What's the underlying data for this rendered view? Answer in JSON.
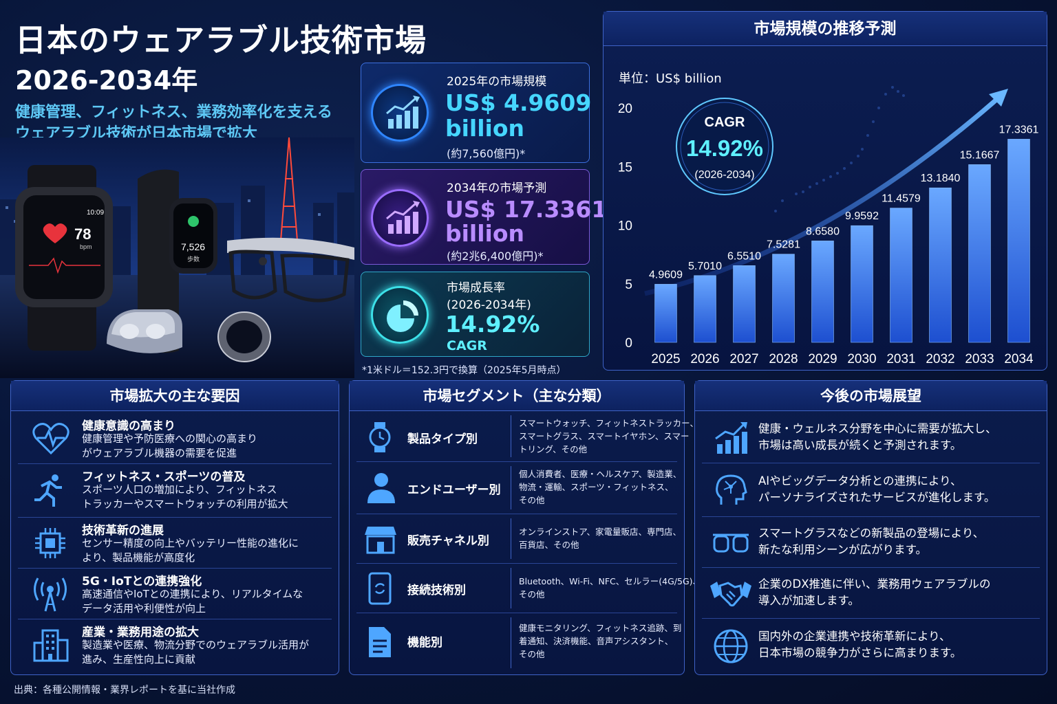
{
  "header": {
    "title_line1": "日本のウェアラブル技術市場",
    "title_line2": "2026-2034年",
    "subtitle_line1": "健康管理、フィットネス、業務効率化を支える",
    "subtitle_line2": "ウェアラブル技術が日本市場で拡大"
  },
  "hero": {
    "watch_time": "10:09",
    "heart_rate": "78",
    "heart_unit": "bpm",
    "steps": "7,526",
    "steps_unit": "歩数"
  },
  "kpis": [
    {
      "label": "2025年の市場規模",
      "value_line1": "US$ 4.9609",
      "value_line2": "billion",
      "note": "(約7,560億円)*",
      "icon": "bar-chart-up-icon"
    },
    {
      "label": "2034年の市場予測",
      "value_line1": "US$ 17.3361",
      "value_line2": "billion",
      "note": "(約2兆6,400億円)*",
      "icon": "bar-chart-up-icon"
    },
    {
      "label_line1": "市場成長率",
      "label_line2": "(2026-2034年)",
      "value_line1": "14.92%",
      "value_line2": "CAGR",
      "icon": "pie-chart-icon"
    }
  ],
  "footnote": "*1米ドル＝152.3円で換算（2025年5月時点）",
  "chart_data": {
    "type": "bar",
    "title": "市場規模の推移予測",
    "unit_label": "単位：US$ billion",
    "categories": [
      "2025",
      "2026",
      "2027",
      "2028",
      "2029",
      "2030",
      "2031",
      "2032",
      "2033",
      "2034"
    ],
    "values": [
      4.9609,
      5.701,
      6.551,
      7.5281,
      8.658,
      9.9592,
      11.4579,
      13.184,
      15.1667,
      17.3361
    ],
    "value_labels": [
      "4.9609",
      "5.7010",
      "6.5510",
      "7.5281",
      "8.6580",
      "9.9592",
      "11.4579",
      "13.1840",
      "15.1667",
      "17.3361"
    ],
    "ylim": [
      0,
      20
    ],
    "yticks": [
      "0",
      "5",
      "10",
      "15",
      "20"
    ],
    "cagr_badge": {
      "label": "CAGR",
      "value": "14.92%",
      "period": "(2026-2034)"
    },
    "bar_color": "#3a7ef0",
    "grid": false
  },
  "factors": {
    "title": "市場拡大の主な要因",
    "items": [
      {
        "icon": "heart-pulse-icon",
        "title": "健康意識の高まり",
        "desc_1": "健康管理や予防医療への関心の高まり",
        "desc_2": "がウェアラブル機器の需要を促進"
      },
      {
        "icon": "runner-icon",
        "title": "フィットネス・スポーツの普及",
        "desc_1": "スポーツ人口の増加により、フィットネス",
        "desc_2": "トラッカーやスマートウォッチの利用が拡大"
      },
      {
        "icon": "chip-icon",
        "title": "技術革新の進展",
        "desc_1": "センサー精度の向上やバッテリー性能の進化に",
        "desc_2": "より、製品機能が高度化"
      },
      {
        "icon": "antenna-icon",
        "title": "5G・IoTとの連携強化",
        "desc_1": "高速通信やIoTとの連携により、リアルタイムな",
        "desc_2": "データ活用や利便性が向上"
      },
      {
        "icon": "building-icon",
        "title": "産業・業務用途の拡大",
        "desc_1": "製造業や医療、物流分野でのウェアラブル活用が",
        "desc_2": "進み、生産性向上に貢献"
      }
    ]
  },
  "segments": {
    "title": "市場セグメント（主な分類）",
    "items": [
      {
        "icon": "watch-icon",
        "name": "製品タイプ別",
        "lines": [
          "スマートウォッチ、フィットネストラッカー、",
          "スマートグラス、スマートイヤホン、スマー",
          "トリング、その他"
        ]
      },
      {
        "icon": "user-icon",
        "name": "エンドユーザー別",
        "lines": [
          "個人消費者、医療・ヘルスケア、製造業、",
          "物流・運輸、スポーツ・フィットネス、",
          "その他"
        ]
      },
      {
        "icon": "store-icon",
        "name": "販売チャネル別",
        "lines": [
          "オンラインストア、家電量販店、専門店、",
          "百貨店、その他"
        ]
      },
      {
        "icon": "phone-sync-icon",
        "name": "接続技術別",
        "lines": [
          "Bluetooth、Wi-Fi、NFC、セルラー(4G/5G)、",
          "その他"
        ]
      },
      {
        "icon": "document-icon",
        "name": "機能別",
        "lines": [
          "健康モニタリング、フィットネス追跡、到",
          "着通知、決済機能、音声アシスタント、",
          "その他"
        ]
      }
    ]
  },
  "outlook": {
    "title": "今後の市場展望",
    "items": [
      {
        "icon": "growth-chart-icon",
        "line1": "健康・ウェルネス分野を中心に需要が拡大し、",
        "line2": "市場は高い成長が続くと予測されます。"
      },
      {
        "icon": "ai-head-icon",
        "line1": "AIやビッグデータ分析との連携により、",
        "line2": "パーソナライズされたサービスが進化します。"
      },
      {
        "icon": "glasses-icon",
        "line1": "スマートグラスなどの新製品の登場により、",
        "line2": "新たな利用シーンが広がります。"
      },
      {
        "icon": "handshake-icon",
        "line1": "企業のDX推進に伴い、業務用ウェアラブルの",
        "line2": "導入が加速します。"
      },
      {
        "icon": "globe-icon",
        "line1": "国内外の企業連携や技術革新により、",
        "line2": "日本市場の競争力がさらに高まります。"
      }
    ]
  },
  "source": "出典：各種公開情報・業界レポートを基に当社作成"
}
